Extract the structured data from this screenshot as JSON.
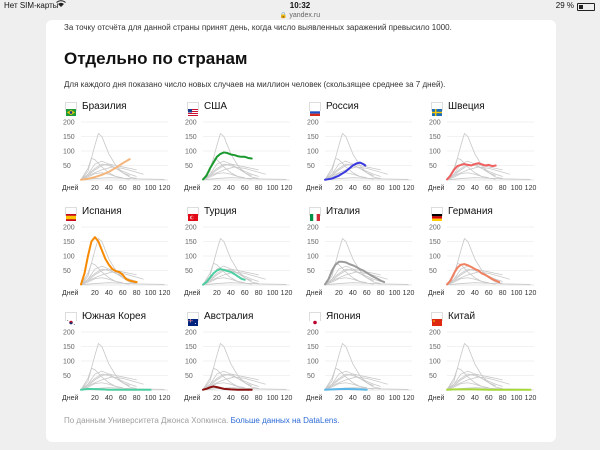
{
  "status_bar": {
    "carrier": "Нет SIM-карты",
    "time": "10:32",
    "battery": "29 %",
    "battery_level": 0.29
  },
  "browser": {
    "url": "yandex.ru"
  },
  "page": {
    "top_text": "За точку отсчёта для данной страны принят день, когда число выявленных заражений превысило 1000.",
    "section_title": "Отдельно по странам",
    "description": "Для каждого дня показано число новых случаев на миллион человек (скользящее среднее за 7 дней).",
    "footer_text": "По данным Университета Джонса Хопкинса.",
    "footer_link": "Больше данных на DataLens."
  },
  "chart_data": {
    "type": "line",
    "x_label": "Дней",
    "x_ticks": [
      20,
      40,
      60,
      80,
      100,
      120
    ],
    "y_ticks": [
      50,
      100,
      150,
      200
    ],
    "xlim": [
      0,
      125
    ],
    "ylim": [
      0,
      200
    ],
    "background_series_color": "#c8c8c8",
    "background_series": [
      {
        "x": [
          0,
          10,
          20,
          25,
          30,
          35,
          40,
          50,
          60,
          70,
          80
        ],
        "y": [
          2,
          30,
          120,
          160,
          150,
          120,
          90,
          50,
          25,
          10,
          5
        ]
      },
      {
        "x": [
          0,
          10,
          15,
          20,
          30,
          40,
          50,
          60,
          70
        ],
        "y": [
          2,
          40,
          75,
          70,
          45,
          25,
          12,
          6,
          3
        ]
      },
      {
        "x": [
          0,
          10,
          20,
          30,
          40,
          50,
          60,
          70,
          80
        ],
        "y": [
          2,
          20,
          40,
          55,
          50,
          40,
          30,
          20,
          12
        ]
      },
      {
        "x": [
          0,
          10,
          20,
          30,
          40,
          50,
          60,
          70,
          80
        ],
        "y": [
          2,
          15,
          35,
          50,
          55,
          50,
          45,
          40,
          35
        ]
      },
      {
        "x": [
          0,
          10,
          20,
          30,
          40,
          50,
          60,
          70
        ],
        "y": [
          2,
          20,
          55,
          65,
          55,
          40,
          25,
          15
        ]
      },
      {
        "x": [
          0,
          15,
          30,
          45,
          60,
          75,
          90
        ],
        "y": [
          2,
          20,
          35,
          45,
          40,
          30,
          20
        ]
      },
      {
        "x": [
          0,
          10,
          20,
          30,
          40,
          50,
          60
        ],
        "y": [
          1,
          10,
          22,
          25,
          20,
          12,
          8
        ]
      },
      {
        "x": [
          0,
          20,
          40,
          60,
          80,
          100,
          120
        ],
        "y": [
          1,
          5,
          8,
          6,
          4,
          3,
          2
        ]
      }
    ],
    "countries": [
      {
        "name": "Бразилия",
        "color": "#f5b57a",
        "flag": "flag-brazil-icon",
        "x": [
          0,
          10,
          20,
          30,
          40,
          50,
          60,
          70
        ],
        "y": [
          1,
          4,
          10,
          18,
          28,
          42,
          58,
          72
        ]
      },
      {
        "name": "США",
        "color": "#1a9a2e",
        "flag": "flag-usa-icon",
        "x": [
          0,
          5,
          10,
          15,
          20,
          25,
          30,
          35,
          40,
          45,
          50,
          55,
          60,
          65,
          70
        ],
        "y": [
          2,
          15,
          40,
          60,
          80,
          90,
          95,
          93,
          88,
          86,
          82,
          80,
          80,
          76,
          74
        ]
      },
      {
        "name": "Россия",
        "color": "#3a3ae0",
        "flag": "flag-russia-icon",
        "x": [
          0,
          10,
          20,
          30,
          35,
          40,
          45,
          50,
          55,
          58
        ],
        "y": [
          1,
          5,
          15,
          30,
          40,
          50,
          57,
          60,
          55,
          50
        ]
      },
      {
        "name": "Швеция",
        "color": "#f06060",
        "flag": "flag-sweden-icon",
        "x": [
          0,
          5,
          10,
          15,
          20,
          25,
          30,
          35,
          40,
          45,
          50,
          55,
          60,
          65,
          70
        ],
        "y": [
          2,
          15,
          35,
          48,
          52,
          55,
          52,
          50,
          55,
          58,
          54,
          50,
          52,
          48,
          50
        ]
      },
      {
        "name": "Испания",
        "color": "#f58a00",
        "flag": "flag-spain-icon",
        "x": [
          0,
          5,
          10,
          15,
          20,
          25,
          30,
          35,
          40,
          45,
          50,
          55,
          60,
          65,
          70,
          75,
          80
        ],
        "y": [
          2,
          40,
          100,
          150,
          165,
          150,
          120,
          90,
          70,
          55,
          48,
          45,
          35,
          20,
          15,
          12,
          10
        ]
      },
      {
        "name": "Турция",
        "color": "#4ccfa0",
        "flag": "flag-turkey-icon",
        "x": [
          0,
          5,
          10,
          15,
          20,
          25,
          30,
          35,
          40,
          45,
          50,
          55,
          60
        ],
        "y": [
          1,
          10,
          25,
          40,
          50,
          55,
          52,
          48,
          45,
          38,
          30,
          22,
          18
        ]
      },
      {
        "name": "Италия",
        "color": "#9a9a9a",
        "flag": "flag-italy-icon",
        "x": [
          0,
          5,
          10,
          15,
          20,
          25,
          30,
          35,
          40,
          45,
          50,
          55,
          60,
          65,
          70,
          75,
          80,
          85
        ],
        "y": [
          2,
          20,
          50,
          70,
          80,
          80,
          78,
          72,
          68,
          62,
          55,
          50,
          42,
          35,
          28,
          22,
          15,
          10
        ]
      },
      {
        "name": "Германия",
        "color": "#f08060",
        "flag": "flag-germany-icon",
        "x": [
          0,
          5,
          10,
          15,
          20,
          25,
          30,
          35,
          40,
          45,
          50,
          55,
          60,
          65,
          70,
          75
        ],
        "y": [
          2,
          15,
          40,
          60,
          70,
          72,
          68,
          62,
          55,
          50,
          40,
          35,
          28,
          20,
          15,
          10
        ]
      },
      {
        "name": "Южная Корея",
        "color": "#4ccfa0",
        "flag": "flag-south-korea-icon",
        "x": [
          0,
          10,
          20,
          30,
          40,
          50,
          60,
          70,
          80,
          90,
          100
        ],
        "y": [
          1,
          4,
          3,
          2,
          1,
          1,
          1,
          1,
          1,
          1,
          1
        ]
      },
      {
        "name": "Австралия",
        "color": "#8a1010",
        "flag": "flag-australia-icon",
        "x": [
          0,
          5,
          10,
          15,
          20,
          25,
          30,
          40,
          50,
          60,
          70
        ],
        "y": [
          1,
          4,
          9,
          12,
          10,
          7,
          4,
          2,
          1,
          1,
          1
        ]
      },
      {
        "name": "Япония",
        "color": "#5ab6e8",
        "flag": "flag-japan-icon",
        "x": [
          0,
          10,
          20,
          30,
          40,
          50,
          60
        ],
        "y": [
          1,
          2,
          3,
          4,
          3,
          2,
          1
        ]
      },
      {
        "name": "Китай",
        "color": "#a6d83a",
        "flag": "flag-china-icon",
        "x": [
          0,
          10,
          20,
          40,
          60,
          80,
          100,
          120
        ],
        "y": [
          1,
          2,
          2,
          2,
          1,
          1,
          1,
          1
        ]
      }
    ]
  }
}
